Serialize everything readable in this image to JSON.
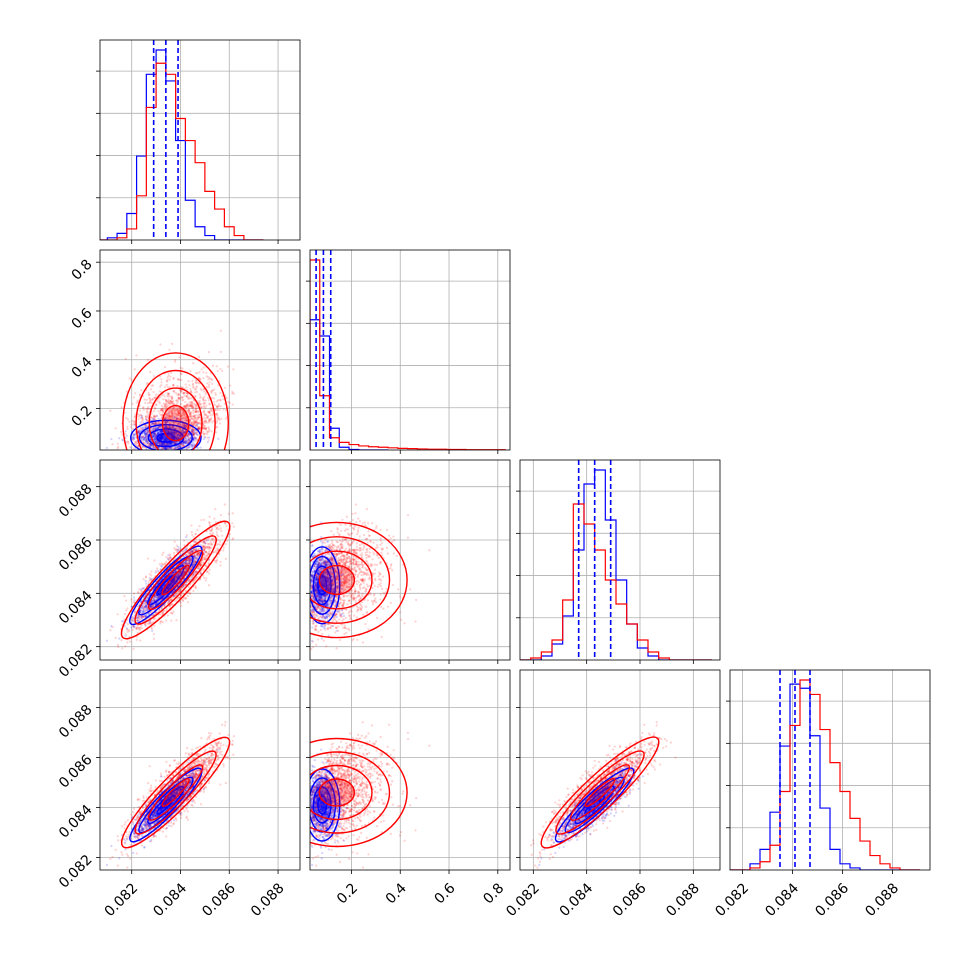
{
  "chart_data": {
    "type": "corner",
    "title": "",
    "grid": true,
    "legend": "none",
    "n_params": 4,
    "colors": {
      "blue": "#0000ff",
      "red": "#ff0000"
    },
    "axis_ranges": [
      [
        0.0807,
        0.0889
      ],
      [
        0.03,
        0.85
      ],
      [
        0.0815,
        0.089
      ],
      [
        0.0815,
        0.0895
      ]
    ],
    "axis_ticks": [
      [
        0.082,
        0.084,
        0.086,
        0.088
      ],
      [
        0.2,
        0.4,
        0.6,
        0.8
      ],
      [
        0.082,
        0.084,
        0.086,
        0.088
      ],
      [
        0.082,
        0.084,
        0.086,
        0.088
      ]
    ],
    "tick_labels": [
      [
        "0.082",
        "0.084",
        "0.086",
        "0.088"
      ],
      [
        "0.2",
        "0.4",
        "0.6",
        "0.8"
      ],
      [
        "0.082",
        "0.084",
        "0.086",
        "0.088"
      ],
      [
        "0.082",
        "0.084",
        "0.086",
        "0.088"
      ]
    ],
    "series": [
      {
        "color": "blue",
        "means": [
          0.0834,
          0.08,
          0.0843,
          0.0841
        ],
        "sds": [
          0.0006,
          0.03,
          0.0006,
          0.0006
        ],
        "quantiles": [
          [
            0.0829,
            0.0834,
            0.0839
          ],
          [
            0.055,
            0.085,
            0.115
          ],
          [
            0.0837,
            0.0843,
            0.0849
          ],
          [
            0.0835,
            0.0841,
            0.0847
          ]
        ],
        "histograms": [
          {
            "edges": [
              0.0806,
              0.081,
              0.0814,
              0.0818,
              0.0822,
              0.0826,
              0.083,
              0.0834,
              0.0838,
              0.0842,
              0.0846,
              0.085,
              0.0854,
              0.0858,
              0.0862,
              0.0866,
              0.087,
              0.0874
            ],
            "counts": [
              0,
              1,
              3,
              12,
              38,
              75,
              86,
              72,
              45,
              18,
              6,
              2,
              0,
              0,
              0,
              0,
              0
            ]
          },
          {
            "edges": [
              0.03,
              0.07,
              0.11,
              0.15,
              0.19,
              0.23,
              0.27,
              0.31,
              0.35
            ],
            "counts": [
              480,
              420,
              80,
              10,
              2,
              0,
              0,
              0
            ]
          },
          {
            "edges": [
              0.0815,
              0.0819,
              0.0823,
              0.0827,
              0.0831,
              0.0835,
              0.0839,
              0.0843,
              0.0847,
              0.0851,
              0.0855,
              0.0859,
              0.0863,
              0.0867,
              0.0871,
              0.0875,
              0.0879,
              0.0883,
              0.0887
            ],
            "counts": [
              0,
              0,
              2,
              8,
              22,
              55,
              88,
              95,
              70,
              40,
              18,
              6,
              2,
              0,
              0,
              0,
              0,
              0
            ]
          },
          {
            "edges": [
              0.0815,
              0.0819,
              0.0823,
              0.0827,
              0.0831,
              0.0835,
              0.0839,
              0.0843,
              0.0847,
              0.0851,
              0.0855,
              0.0859,
              0.0863,
              0.0867,
              0.0871,
              0.0875,
              0.0879,
              0.0883,
              0.0887,
              0.0891
            ],
            "counts": [
              0,
              0,
              3,
              10,
              28,
              60,
              90,
              88,
              65,
              30,
              10,
              3,
              1,
              0,
              0,
              0,
              0,
              0,
              0
            ]
          }
        ]
      },
      {
        "color": "red",
        "means": [
          0.0838,
          0.14,
          0.0845,
          0.0846
        ],
        "sds": [
          0.0009,
          0.12,
          0.0009,
          0.0009
        ],
        "histograms": [
          {
            "edges": [
              0.0806,
              0.081,
              0.0814,
              0.0818,
              0.0822,
              0.0826,
              0.083,
              0.0834,
              0.0838,
              0.0842,
              0.0846,
              0.085,
              0.0854,
              0.0858,
              0.0862,
              0.0866,
              0.087,
              0.0874
            ],
            "counts": [
              0,
              0,
              1,
              5,
              20,
              60,
              80,
              75,
              55,
              45,
              35,
              22,
              14,
              6,
              2,
              0,
              0
            ]
          },
          {
            "edges": [
              0.03,
              0.07,
              0.11,
              0.15,
              0.19,
              0.23,
              0.27,
              0.31,
              0.35,
              0.39,
              0.43,
              0.47,
              0.51,
              0.55,
              0.59,
              0.63,
              0.67,
              0.71,
              0.75,
              0.79,
              0.83
            ],
            "counts": [
              700,
              200,
              45,
              28,
              20,
              15,
              12,
              10,
              8,
              6,
              5,
              4,
              3,
              3,
              2,
              2,
              1,
              1,
              1,
              1
            ]
          },
          {
            "edges": [
              0.0815,
              0.0819,
              0.0823,
              0.0827,
              0.0831,
              0.0835,
              0.0839,
              0.0843,
              0.0847,
              0.0851,
              0.0855,
              0.0859,
              0.0863,
              0.0867,
              0.0871,
              0.0875,
              0.0879,
              0.0883,
              0.0887
            ],
            "counts": [
              0,
              1,
              4,
              10,
              30,
              78,
              68,
              55,
              40,
              28,
              18,
              10,
              4,
              1,
              0,
              0,
              0,
              0
            ]
          },
          {
            "edges": [
              0.0815,
              0.0819,
              0.0823,
              0.0827,
              0.0831,
              0.0835,
              0.0839,
              0.0843,
              0.0847,
              0.0851,
              0.0855,
              0.0859,
              0.0863,
              0.0867,
              0.0871,
              0.0875,
              0.0879,
              0.0883,
              0.0887,
              0.0891
            ],
            "counts": [
              0,
              0,
              1,
              4,
              12,
              38,
              70,
              92,
              85,
              68,
              52,
              38,
              25,
              14,
              7,
              3,
              1,
              0,
              0
            ]
          }
        ]
      }
    ]
  }
}
